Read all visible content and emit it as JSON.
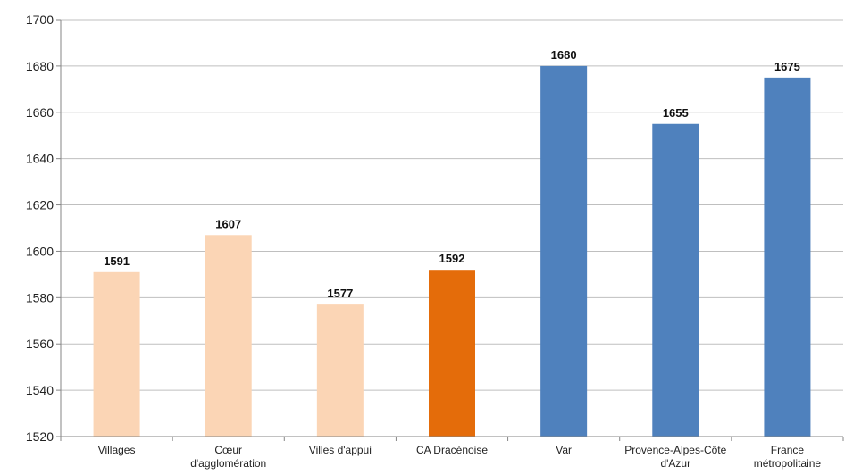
{
  "chart_data": {
    "type": "bar",
    "title": "",
    "xlabel": "",
    "ylabel": "",
    "ylim": [
      1520,
      1700
    ],
    "y_ticks": [
      1520,
      1540,
      1560,
      1580,
      1600,
      1620,
      1640,
      1660,
      1680,
      1700
    ],
    "grid": "horizontal",
    "categories": [
      [
        "Villages"
      ],
      [
        "Cœur",
        "d'agglomération"
      ],
      [
        "Villes d'appui"
      ],
      [
        "CA Dracénoise"
      ],
      [
        "Var"
      ],
      [
        "Provence-Alpes-Côte",
        "d'Azur"
      ],
      [
        "France",
        "métropolitaine"
      ]
    ],
    "values": [
      1591,
      1607,
      1577,
      1592,
      1680,
      1655,
      1675
    ],
    "data_labels": [
      "1591",
      "1607",
      "1577",
      "1592",
      "1680",
      "1655",
      "1675"
    ],
    "bar_colors": [
      "#FBD5B5",
      "#FBD5B5",
      "#FBD5B5",
      "#E46C0A",
      "#4F81BD",
      "#4F81BD",
      "#4F81BD"
    ],
    "colors": {
      "gridline": "#BFBFBF",
      "axis": "#868686",
      "text": "#222222"
    }
  }
}
